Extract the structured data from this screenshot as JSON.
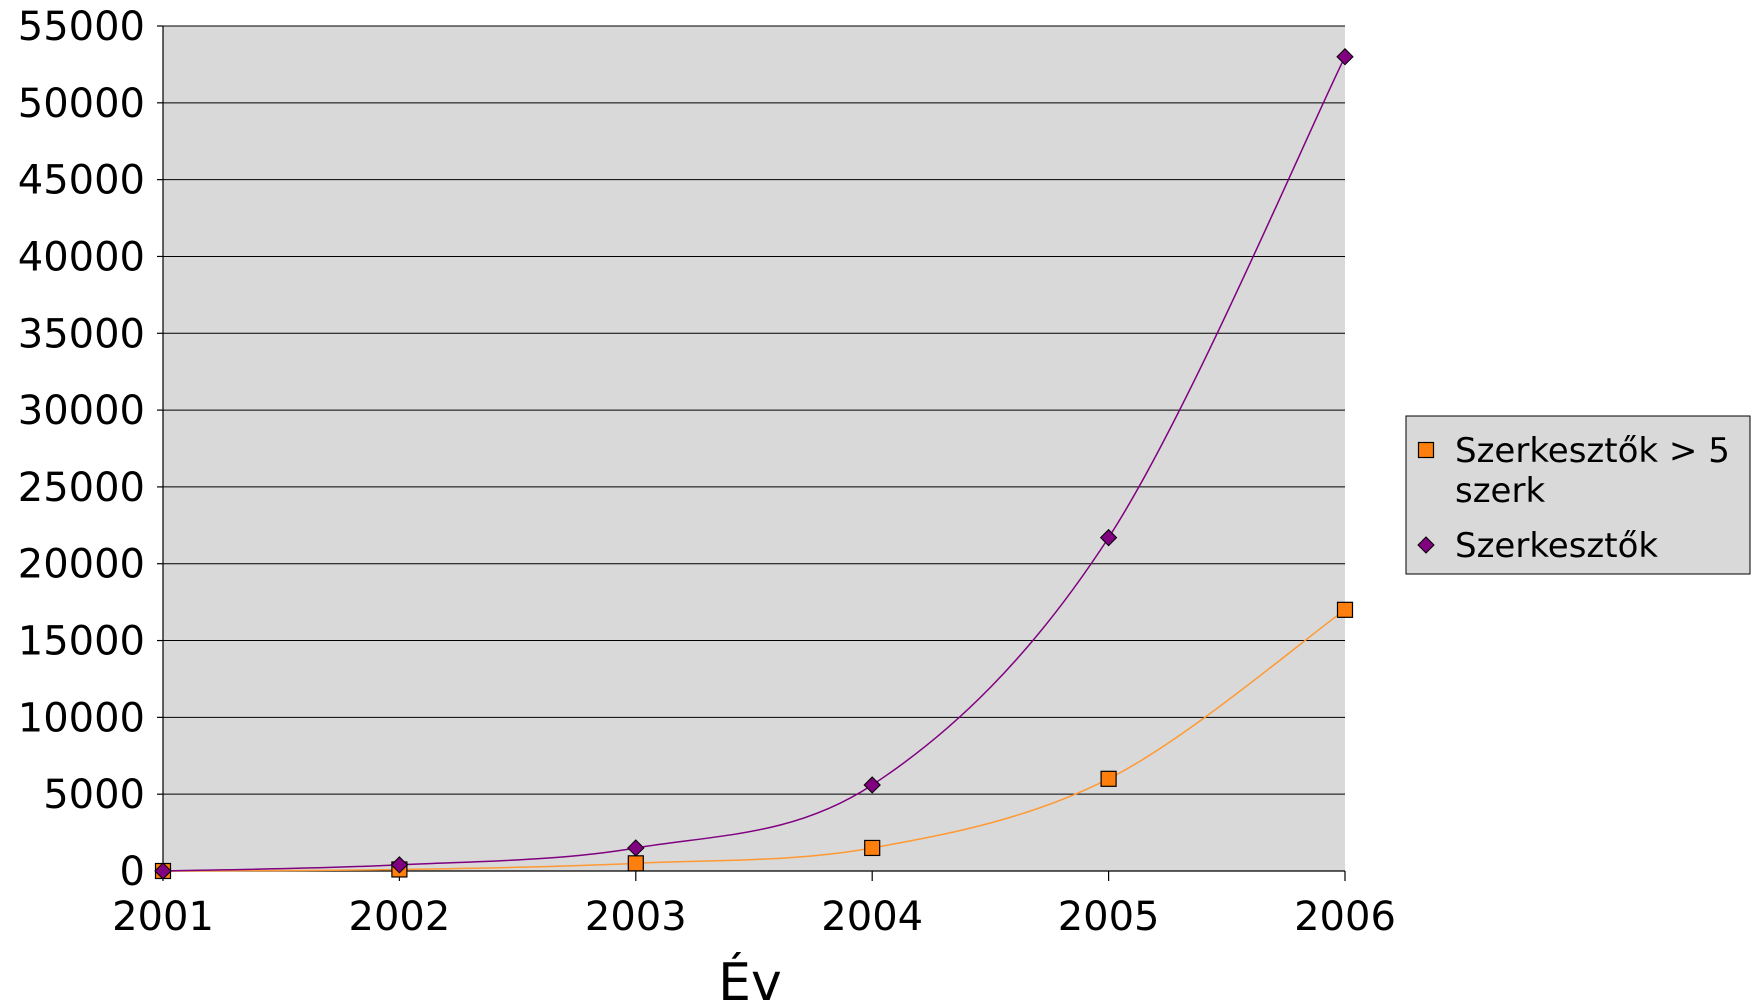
{
  "chart_data": {
    "type": "line",
    "title": "",
    "xlabel": "Év",
    "ylabel": "",
    "x": [
      2001,
      2002,
      2003,
      2004,
      2005,
      2006
    ],
    "xlim": [
      2001,
      2006
    ],
    "ylim": [
      0,
      55000
    ],
    "y_ticks": [
      0,
      5000,
      10000,
      15000,
      20000,
      25000,
      30000,
      35000,
      40000,
      45000,
      50000,
      55000
    ],
    "grid": true,
    "legend_position": "right",
    "series": [
      {
        "name": "Szerkesztők > 5 szerk",
        "legend_lines": [
          "Szerkesztők > 5",
          "szerk"
        ],
        "values": [
          0,
          100,
          500,
          1500,
          6000,
          17000
        ],
        "color": "#ff7f0e",
        "line_color": "#ff9933",
        "marker": "square"
      },
      {
        "name": "Szerkesztők",
        "legend_lines": [
          "Szerkesztők"
        ],
        "values": [
          0,
          400,
          1500,
          5600,
          21700,
          53000
        ],
        "color": "#800080",
        "line_color": "#800080",
        "marker": "diamond"
      }
    ],
    "plot_background": "#d9d9d9"
  }
}
